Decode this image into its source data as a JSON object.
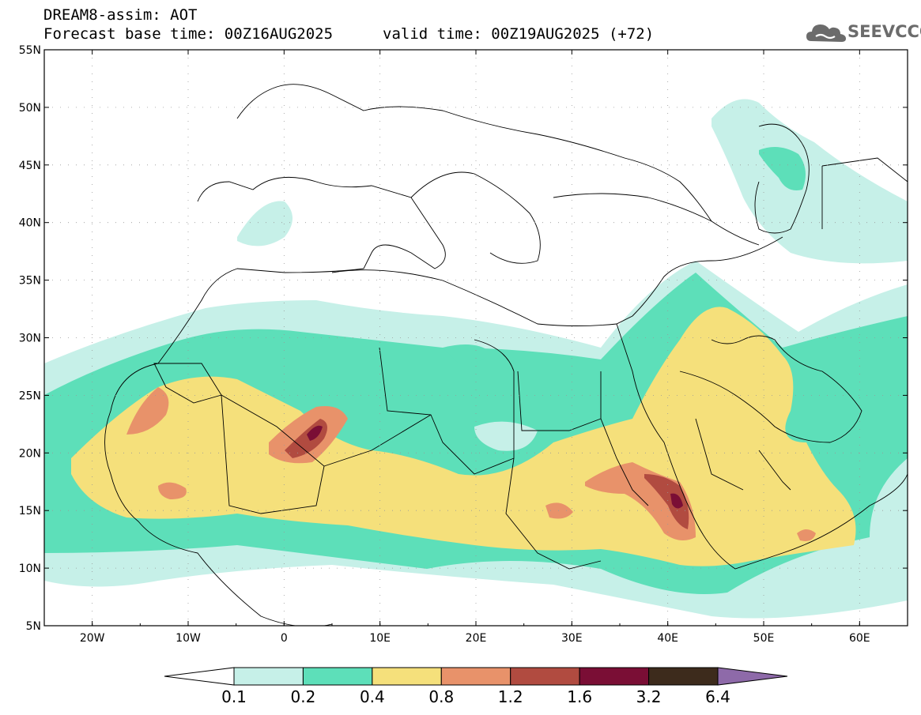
{
  "header": {
    "title": "DREAM8-assim: AOT",
    "base_time": "Forecast base time: 00Z16AUG2025",
    "valid_time": "valid time: 00Z19AUG2025 (+72)",
    "logo_text": "SEEVCCC"
  },
  "axes": {
    "lat_labels": [
      "55N",
      "50N",
      "45N",
      "40N",
      "35N",
      "30N",
      "25N",
      "20N",
      "15N",
      "10N",
      "5N"
    ],
    "lon_labels": [
      "20W",
      "10W",
      "0",
      "10E",
      "20E",
      "30E",
      "40E",
      "50E",
      "60E"
    ],
    "lat_range": [
      5,
      55
    ],
    "lon_range": [
      -25,
      65
    ]
  },
  "colorbar": {
    "labels": [
      "0.1",
      "0.2",
      "0.4",
      "0.8",
      "1.2",
      "1.6",
      "3.2",
      "6.4"
    ],
    "colors": [
      "#ffffff",
      "#c6f0e8",
      "#5ddfb9",
      "#f5e07b",
      "#e8926a",
      "#b14b40",
      "#7a0e35",
      "#3d2b1c",
      "#8e6aa9"
    ]
  },
  "palette": {
    "land_outline": "#000000",
    "background": "#ffffff"
  }
}
